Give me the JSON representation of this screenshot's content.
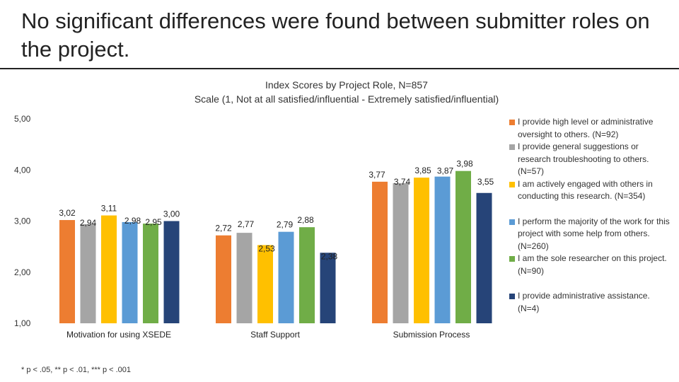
{
  "slide": {
    "title": "No significant differences were found between submitter roles on the project.",
    "footnote": "* p < .05, ** p < .01, *** p < .001"
  },
  "chart_data": {
    "type": "bar",
    "title": "Index Scores by Project Role, N=857",
    "subtitle": "Scale (1, Not at all satisfied/influential - Extremely satisfied/influential)",
    "categories": [
      "Motivation for using XSEDE",
      "Staff Support",
      "Submission Process"
    ],
    "ylim": [
      1,
      5
    ],
    "yticks": [
      "1,00",
      "2,00",
      "3,00",
      "4,00",
      "5,00"
    ],
    "ytick_values": [
      1,
      2,
      3,
      4,
      5
    ],
    "grid": false,
    "legend_position": "right",
    "series": [
      {
        "name": "I provide high level or administrative oversight to others. (N=92)",
        "color": "#ED7D31",
        "values": [
          3.02,
          2.72,
          3.77
        ],
        "labels": [
          "3,02",
          "2,72",
          "3,77"
        ]
      },
      {
        "name": "I provide general suggestions or research troubleshooting to others. (N=57)",
        "color": "#A5A5A5",
        "values": [
          2.94,
          2.77,
          3.74
        ],
        "labels": [
          "2,94",
          "2,77",
          "3,74"
        ]
      },
      {
        "name": "I am actively engaged with others in conducting this research. (N=354)",
        "color": "#FFC000",
        "values": [
          3.11,
          2.53,
          3.85
        ],
        "labels": [
          "3,11",
          "2,53",
          "3,85"
        ]
      },
      {
        "name": "I perform the majority of the work for this project with some help from others. (N=260)",
        "color": "#5B9BD5",
        "values": [
          2.98,
          2.79,
          3.87
        ],
        "labels": [
          "2,98",
          "2,79",
          "3,87"
        ]
      },
      {
        "name": "I am the sole researcher on this project. (N=90)",
        "color": "#70AD47",
        "values": [
          2.95,
          2.88,
          3.98
        ],
        "labels": [
          "2,95",
          "2,88",
          "3,98"
        ]
      },
      {
        "name": "I provide administrative assistance. (N=4)",
        "color": "#264478",
        "values": [
          3.0,
          2.38,
          3.55
        ],
        "labels": [
          "3,00",
          "2,38",
          "3,55"
        ]
      }
    ]
  }
}
